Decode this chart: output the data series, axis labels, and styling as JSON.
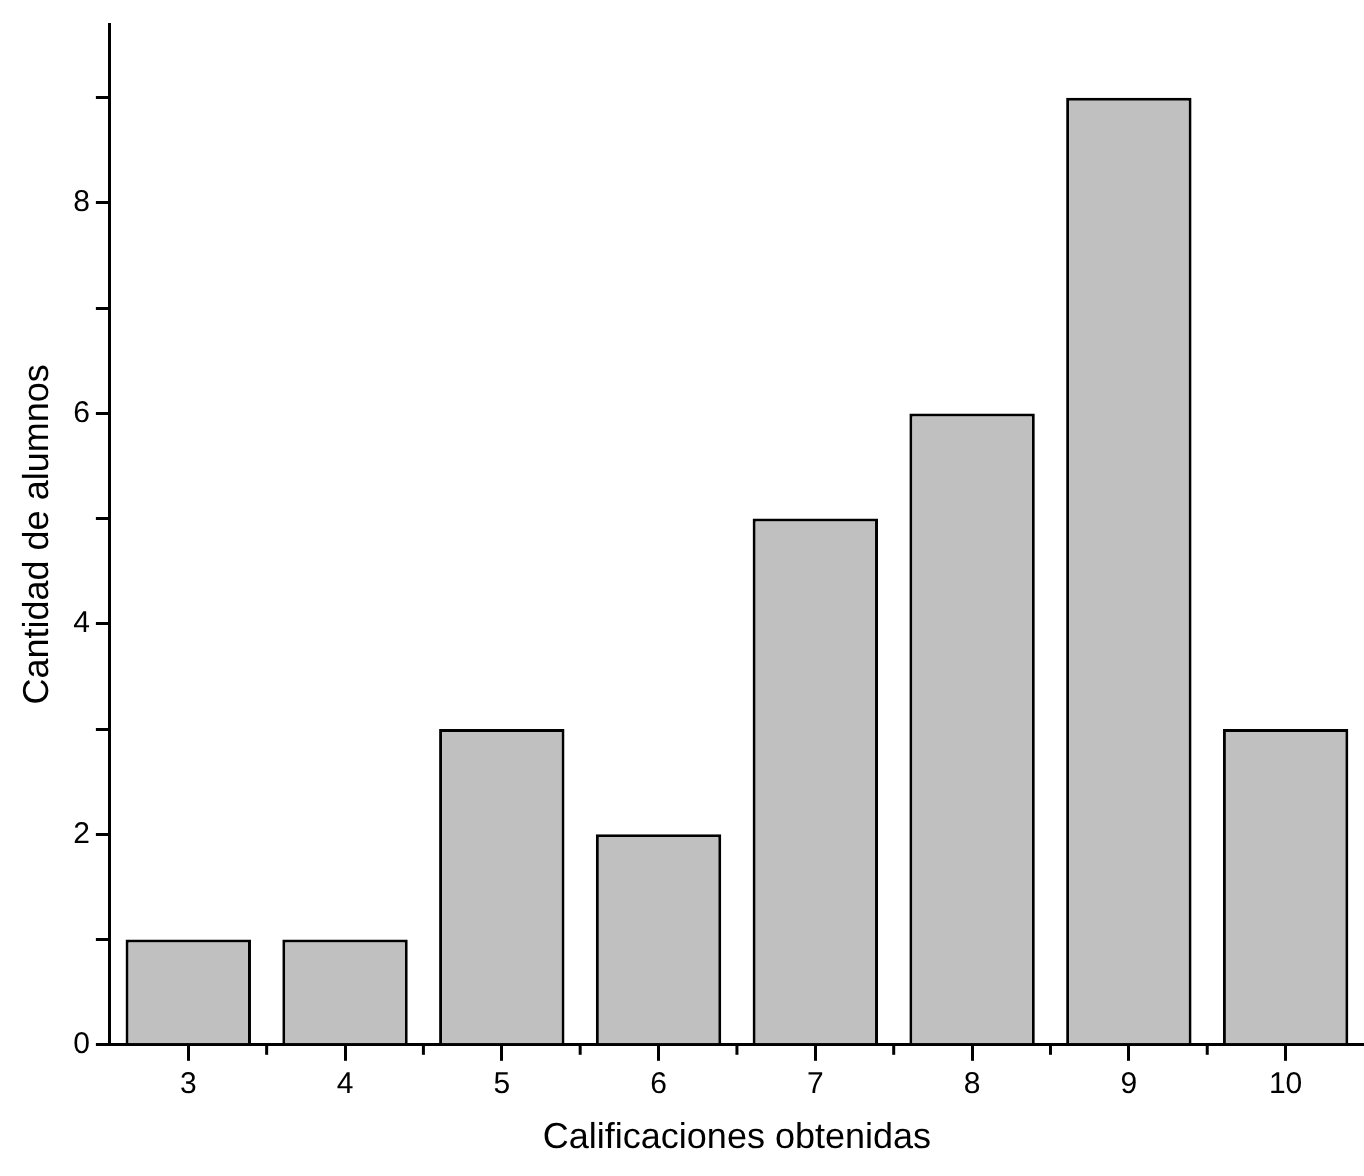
{
  "chart_data": {
    "type": "bar",
    "xlabel": "Calificaciones obtenidas",
    "ylabel": "Cantidad de alumnos",
    "categories": [
      "3",
      "4",
      "5",
      "6",
      "7",
      "8",
      "9",
      "10"
    ],
    "values": [
      1,
      1,
      3,
      2,
      5,
      6,
      9,
      3
    ],
    "color": "#c0c0c0",
    "ylim": [
      0,
      9.7
    ],
    "yticks": [
      0,
      {
        "value": 1,
        "label": null
      },
      2,
      {
        "value": 3,
        "label": null
      },
      4,
      {
        "value": 5,
        "label": null
      },
      6,
      {
        "value": 7,
        "label": null
      },
      8,
      {
        "value": 9,
        "label": null
      }
    ],
    "grid": false,
    "legend": false
  }
}
